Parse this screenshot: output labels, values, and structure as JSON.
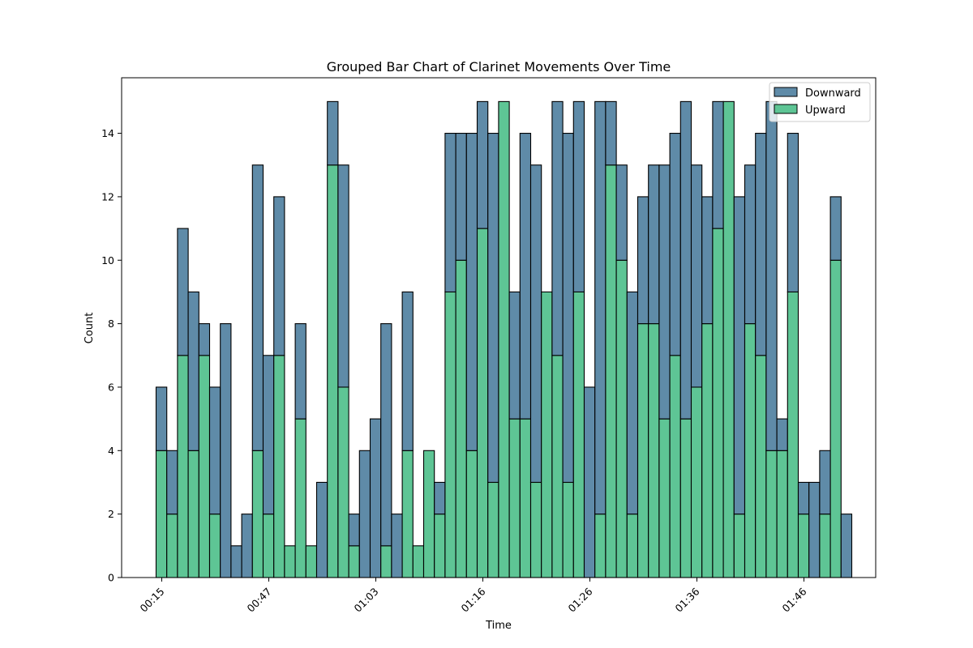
{
  "chart_data": {
    "type": "bar",
    "stacked": true,
    "title": "Grouped Bar Chart of Clarinet Movements Over Time",
    "xlabel": "Time",
    "ylabel": "Count",
    "ylim": [
      0,
      15.75
    ],
    "y_ticks": [
      0,
      2,
      4,
      6,
      8,
      10,
      12,
      14
    ],
    "x_tick_labels": [
      "00:15",
      "00:47",
      "01:03",
      "01:16",
      "01:26",
      "01:36",
      "01:46"
    ],
    "x_tick_bar_index": [
      0,
      10,
      20,
      30,
      40,
      50,
      60
    ],
    "legend": {
      "position": "upper right"
    },
    "grid": false,
    "colors": {
      "Downward": "#5f8ba8",
      "Upward": "#5ec595",
      "edge": "#000000"
    },
    "series": [
      {
        "name": "Upward",
        "values": [
          4,
          2,
          7,
          4,
          7,
          2,
          0,
          0,
          0,
          4,
          2,
          7,
          1,
          5,
          1,
          0,
          13,
          6,
          1,
          0,
          0,
          1,
          0,
          4,
          1,
          4,
          2,
          9,
          10,
          4,
          11,
          3,
          15,
          5,
          5,
          3,
          9,
          7,
          3,
          9,
          0,
          2,
          13,
          10,
          2,
          8,
          8,
          5,
          7,
          5,
          6,
          8,
          11,
          15,
          2,
          8,
          7,
          4,
          4,
          9,
          2,
          0,
          2,
          10,
          0
        ]
      },
      {
        "name": "Downward",
        "values": [
          2,
          2,
          4,
          5,
          1,
          4,
          8,
          1,
          2,
          9,
          5,
          5,
          0,
          3,
          0,
          3,
          2,
          7,
          1,
          4,
          5,
          7,
          2,
          5,
          0,
          0,
          1,
          5,
          4,
          10,
          4,
          11,
          0,
          4,
          9,
          10,
          0,
          8,
          11,
          6,
          6,
          13,
          2,
          3,
          7,
          4,
          5,
          8,
          7,
          10,
          7,
          4,
          4,
          0,
          10,
          5,
          7,
          11,
          1,
          5,
          1,
          3,
          2,
          2,
          2
        ]
      }
    ]
  }
}
